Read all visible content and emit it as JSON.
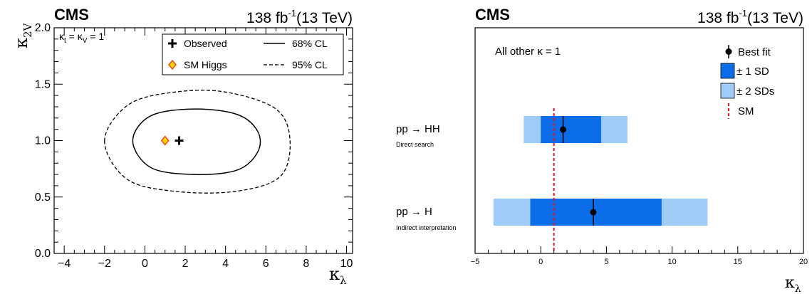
{
  "left_panel": {
    "experiment": "CMS",
    "lumi_value": "138 fb",
    "lumi_exp": "-1",
    "lumi_energy": "(13 TeV)",
    "condition": {
      "k1": "κ",
      "s1": "t",
      "eq1": " = ",
      "k2": "κ",
      "s2": "V",
      "eq2": " = 1"
    },
    "xlabel_sym": "κ",
    "xlabel_sub": "λ",
    "ylabel_sym": "κ",
    "ylabel_sub": "2V",
    "legend": {
      "observed": "Observed",
      "sm_higgs": "SM Higgs",
      "cl68": "68% CL",
      "cl95": "95% CL"
    },
    "colors": {
      "sm_fill": "#ffd200",
      "sm_edge": "#e8501f"
    }
  },
  "right_panel": {
    "experiment": "CMS",
    "lumi_value": "138 fb",
    "lumi_exp": "-1",
    "lumi_energy": "(13 TeV)",
    "note": "All other κ = 1",
    "xlabel_sym": "κ",
    "xlabel_sub": "λ",
    "legend": {
      "best_fit": "Best fit",
      "sd1": "± 1 SD",
      "sd2": "± 2 SDs",
      "sm": "SM"
    },
    "rows": [
      {
        "label": "pp → HH",
        "sublabel": "Direct search"
      },
      {
        "label": "pp → H",
        "sublabel": "Indirect interpretation"
      }
    ],
    "colors": {
      "sd1": "#0b6ee8",
      "sd2": "#9ecbf8",
      "sm_line": "#e6141e"
    }
  },
  "chart_data": [
    {
      "type": "scatter",
      "title": "",
      "xlabel": "κλ",
      "ylabel": "κ2V",
      "xlim": [
        -4.5,
        10.3
      ],
      "ylim": [
        0.0,
        2.0
      ],
      "xticks": [
        -4,
        -2,
        0,
        2,
        4,
        6,
        8,
        10
      ],
      "yticks": [
        0.0,
        0.5,
        1.0,
        1.5,
        2.0
      ],
      "ytick_labels": [
        "0.0",
        "0.5",
        "1.0",
        "1.5",
        "2.0"
      ],
      "observed": {
        "x": 1.7,
        "y": 1.0
      },
      "sm_higgs": {
        "x": 1.0,
        "y": 1.0
      },
      "contour_68": {
        "x": [
          -0.6,
          0.3,
          2.5,
          4.6,
          5.6,
          5.6,
          4.6,
          2.5,
          0.3,
          -0.6
        ],
        "y": [
          1.0,
          0.76,
          0.7,
          0.74,
          0.9,
          1.08,
          1.23,
          1.28,
          1.22,
          1.0
        ]
      },
      "contour_95": {
        "x": [
          -2.0,
          -0.9,
          1.5,
          4.5,
          6.7,
          7.2,
          6.5,
          4.0,
          1.5,
          -0.8,
          -2.0
        ],
        "y": [
          1.0,
          0.66,
          0.55,
          0.55,
          0.68,
          1.0,
          1.28,
          1.43,
          1.43,
          1.32,
          1.0
        ]
      },
      "grid": false,
      "legend_position": "top-right"
    },
    {
      "type": "bar",
      "title": "",
      "xlabel": "κλ",
      "xlim": [
        -5,
        20
      ],
      "xticks": [
        -5,
        0,
        5,
        10,
        15,
        20
      ],
      "categories": [
        "pp → HH",
        "pp → H"
      ],
      "best_fit": [
        1.7,
        4.0
      ],
      "sd1": [
        [
          0.0,
          4.6
        ],
        [
          -0.8,
          9.2
        ]
      ],
      "sd2": [
        [
          -1.3,
          6.6
        ],
        [
          -3.6,
          12.7
        ]
      ],
      "sm_value": 1.0,
      "grid": false,
      "legend_position": "top-right"
    }
  ]
}
